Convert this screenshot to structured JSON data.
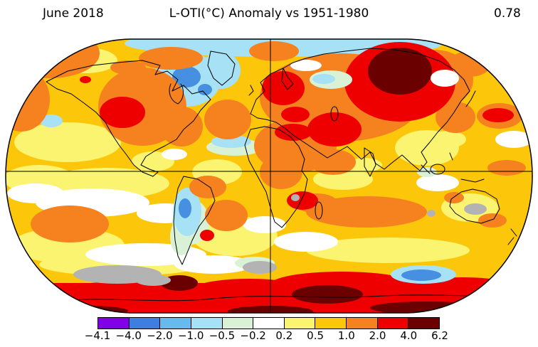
{
  "header": {
    "date_label": "June 2018",
    "title": "L-OTI(°C) Anomaly vs 1951-1980",
    "global_mean": "0.78"
  },
  "colorbar": {
    "tick_labels": [
      "−4.1",
      "−4.0",
      "−2.0",
      "−1.0",
      "−0.5",
      "−0.2",
      "0.2",
      "0.5",
      "1.0",
      "2.0",
      "4.0",
      "6.2"
    ],
    "segment_colors": [
      "#8200e8",
      "#3e7ee1",
      "#66bbee",
      "#a6e1f6",
      "#d9f2d5",
      "#ffffff",
      "#faf470",
      "#fcc60a",
      "#f5821f",
      "#ee0000",
      "#6b0000"
    ],
    "no_data_color": "#b3b3b3"
  },
  "chart_data": {
    "type": "heatmap",
    "title": "L-OTI(°C) Anomaly vs 1951-1980",
    "period": "June 2018",
    "units": "°C",
    "baseline_period": "1951-1980",
    "global_mean_anomaly_c": 0.78,
    "projection": "global world map, Robinson-style, equator and prime-meridian gridlines",
    "scale_bin_edges_c": [
      -4.1,
      -4.0,
      -2.0,
      -1.0,
      -0.5,
      -0.2,
      0.2,
      0.5,
      1.0,
      2.0,
      4.0,
      6.2
    ],
    "scale_bin_colors": [
      "#8200e8",
      "#3e7ee1",
      "#66bbee",
      "#a6e1f6",
      "#d9f2d5",
      "#ffffff",
      "#faf470",
      "#fcc60a",
      "#f5821f",
      "#ee0000",
      "#6b0000"
    ],
    "no_data_color": "#b3b3b3",
    "legend_position": "bottom",
    "notable_regions_depicted": [
      {
        "region": "Central Siberia",
        "anomaly_c": "4.0 to 6.2"
      },
      {
        "region": "Ring around central Siberia",
        "anomaly_c": "2.0 to 4.0"
      },
      {
        "region": "Central / Eastern Europe",
        "anomaly_c": "2.0 to 4.0"
      },
      {
        "region": "Middle East / Caspian region",
        "anomaly_c": "2.0 to 4.0"
      },
      {
        "region": "Southwestern United States / Texas",
        "anomaly_c": "2.0 to 4.0"
      },
      {
        "region": "Angola / DR Congo area",
        "anomaly_c": "2.0 to 4.0"
      },
      {
        "region": "Antarctic coastal band",
        "anomaly_c": "2.0 to 6.2"
      },
      {
        "region": "Most mid-latitude oceans and continents",
        "anomaly_c": "0.5 to 2.0"
      },
      {
        "region": "Hudson Bay / Baffin Island",
        "anomaly_c": "-2.0 to -1.0"
      },
      {
        "region": "Arctic fringe band",
        "anomaly_c": "-1.0 to -0.5"
      },
      {
        "region": "Southern South America (Argentina/Chile)",
        "anomaly_c": "-2.0 to -0.5"
      },
      {
        "region": "Southern Ocean south of Australia",
        "anomaly_c": "-2.0 to -1.0"
      },
      {
        "region": "Parts of Antarctica and interior Australia",
        "anomaly_c": "no data (gray)"
      }
    ]
  }
}
